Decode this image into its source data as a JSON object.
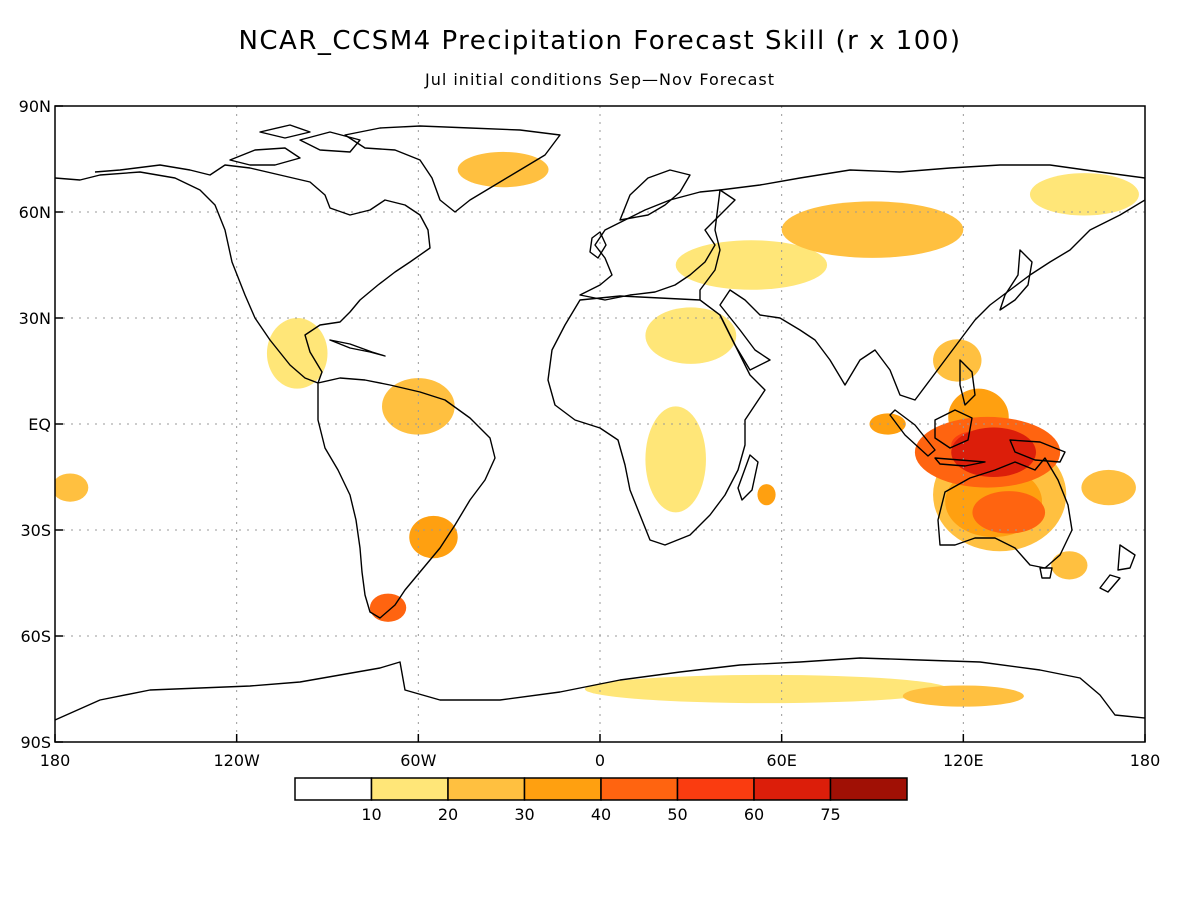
{
  "title": "NCAR_CCSM4 Precipitation Forecast Skill (r x 100)",
  "subtitle": "Jul initial conditions  Sep—Nov Forecast",
  "map": {
    "lon_range": [
      -180,
      180
    ],
    "lat_range": [
      -90,
      90
    ],
    "grid": true,
    "lon_ticks": [
      {
        "lon": -180,
        "label": "180"
      },
      {
        "lon": -120,
        "label": "120W"
      },
      {
        "lon": -60,
        "label": "60W"
      },
      {
        "lon": 0,
        "label": "0"
      },
      {
        "lon": 60,
        "label": "60E"
      },
      {
        "lon": 120,
        "label": "120E"
      },
      {
        "lon": 180,
        "label": "180"
      }
    ],
    "lat_ticks": [
      {
        "lat": 90,
        "label": "90N"
      },
      {
        "lat": 60,
        "label": "60N"
      },
      {
        "lat": 30,
        "label": "30N"
      },
      {
        "lat": 0,
        "label": "EQ"
      },
      {
        "lat": -30,
        "label": "30S"
      },
      {
        "lat": -60,
        "label": "60S"
      },
      {
        "lat": -90,
        "label": "90S"
      }
    ],
    "skill_regions": [
      {
        "lon": 130,
        "lat": -8,
        "rx": 14,
        "ry": 7,
        "level": 6
      },
      {
        "lon": 124,
        "lat": -6,
        "rx": 8,
        "ry": 4,
        "level": 5
      },
      {
        "lon": 128,
        "lat": -8,
        "rx": 24,
        "ry": 10,
        "level": 4
      },
      {
        "lon": 130,
        "lat": -22,
        "rx": 16,
        "ry": 10,
        "level": 3
      },
      {
        "lon": 135,
        "lat": -25,
        "rx": 12,
        "ry": 6,
        "level": 4
      },
      {
        "lon": 132,
        "lat": -20,
        "rx": 22,
        "ry": 16,
        "level": 2
      },
      {
        "lon": 125,
        "lat": 2,
        "rx": 10,
        "ry": 8,
        "level": 3
      },
      {
        "lon": 95,
        "lat": 0,
        "rx": 6,
        "ry": 3,
        "level": 3
      },
      {
        "lon": 118,
        "lat": 18,
        "rx": 8,
        "ry": 6,
        "level": 2
      },
      {
        "lon": 168,
        "lat": -18,
        "rx": 9,
        "ry": 5,
        "level": 2
      },
      {
        "lon": 155,
        "lat": -40,
        "rx": 6,
        "ry": 4,
        "level": 2
      },
      {
        "lon": 90,
        "lat": 55,
        "rx": 30,
        "ry": 8,
        "level": 2
      },
      {
        "lon": 50,
        "lat": 45,
        "rx": 25,
        "ry": 7,
        "level": 1
      },
      {
        "lon": 30,
        "lat": 25,
        "rx": 15,
        "ry": 8,
        "level": 1
      },
      {
        "lon": 25,
        "lat": -10,
        "rx": 10,
        "ry": 15,
        "level": 1
      },
      {
        "lon": 55,
        "lat": -20,
        "rx": 3,
        "ry": 3,
        "level": 3
      },
      {
        "lon": -60,
        "lat": 5,
        "rx": 12,
        "ry": 8,
        "level": 2
      },
      {
        "lon": -55,
        "lat": -32,
        "rx": 8,
        "ry": 6,
        "level": 3
      },
      {
        "lon": -70,
        "lat": -52,
        "rx": 6,
        "ry": 4,
        "level": 4
      },
      {
        "lon": -100,
        "lat": 20,
        "rx": 10,
        "ry": 10,
        "level": 1
      },
      {
        "lon": -175,
        "lat": -18,
        "rx": 6,
        "ry": 4,
        "level": 2
      },
      {
        "lon": -32,
        "lat": 72,
        "rx": 15,
        "ry": 5,
        "level": 2
      },
      {
        "lon": 160,
        "lat": 65,
        "rx": 18,
        "ry": 6,
        "level": 1
      },
      {
        "lon": 55,
        "lat": -75,
        "rx": 60,
        "ry": 4,
        "level": 1
      },
      {
        "lon": 120,
        "lat": -77,
        "rx": 20,
        "ry": 3,
        "level": 2
      }
    ]
  },
  "colorbar": {
    "labels": [
      "10",
      "20",
      "30",
      "40",
      "50",
      "60",
      "75"
    ],
    "colors": [
      "#ffffff",
      "#ffe678",
      "#ffc040",
      "#ffa010",
      "#ff6410",
      "#fa3c10",
      "#dc1e0a",
      "#a01005"
    ]
  }
}
